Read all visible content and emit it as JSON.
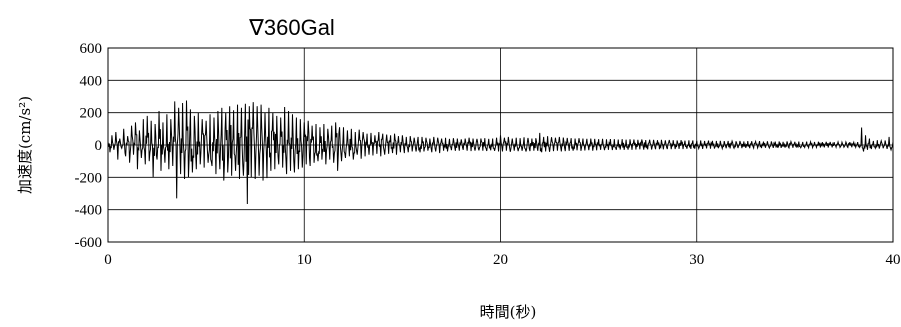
{
  "chart_data": {
    "type": "line",
    "title": "∇360Gal",
    "xlabel": "時間(秒)",
    "ylabel": "加速度(cm/s²)",
    "xlim": [
      0,
      40
    ],
    "ylim": [
      -600,
      600
    ],
    "x_ticks": [
      0,
      10,
      20,
      30,
      40
    ],
    "y_ticks": [
      600,
      400,
      200,
      0,
      -200,
      -400,
      -600
    ],
    "grid": true,
    "legend": "none",
    "line_color": "#000000",
    "series": [
      {
        "sample_interval_s": 0.1,
        "values": [
          20,
          -45,
          60,
          -30,
          80,
          -90,
          40,
          -20,
          100,
          -70,
          55,
          -110,
          120,
          -60,
          140,
          -150,
          90,
          -80,
          160,
          -120,
          180,
          -100,
          150,
          -200,
          130,
          -90,
          210,
          -160,
          140,
          -110,
          190,
          -150,
          160,
          -130,
          270,
          -330,
          230,
          -180,
          260,
          -210,
          275,
          -200,
          220,
          -170,
          180,
          -150,
          200,
          -120,
          160,
          -140,
          150,
          -110,
          190,
          -130,
          170,
          -180,
          210,
          -150,
          230,
          -220,
          200,
          -170,
          240,
          -190,
          215,
          -160,
          250,
          -210,
          230,
          -190,
          255,
          -365,
          240,
          -200,
          265,
          -210,
          240,
          -190,
          250,
          -220,
          200,
          -205,
          230,
          -160,
          200,
          -150,
          180,
          -120,
          170,
          -140,
          235,
          -180,
          210,
          -160,
          190,
          -170,
          170,
          -150,
          160,
          -140,
          140,
          -120,
          150,
          -130,
          120,
          -110,
          130,
          -100,
          110,
          -90,
          130,
          -120,
          100,
          -90,
          120,
          -110,
          140,
          -160,
          110,
          -100,
          110,
          -80,
          90,
          -70,
          100,
          -90,
          80,
          -60,
          95,
          -85,
          80,
          -70,
          70,
          -60,
          75,
          -65,
          60,
          -55,
          80,
          -70,
          70,
          -60,
          65,
          -55,
          60,
          -50,
          70,
          -60,
          55,
          -45,
          60,
          -50,
          50,
          -45,
          55,
          -40,
          45,
          -40,
          50,
          -45,
          50,
          -40,
          45,
          -35,
          40,
          -45,
          50,
          -40,
          45,
          -50,
          40,
          -35,
          45,
          -40,
          38,
          -32,
          42,
          -36,
          40,
          -35,
          35,
          -30,
          40,
          -35,
          45,
          -38,
          40,
          -35,
          38,
          -33,
          40,
          -35,
          42,
          -37,
          38,
          -33,
          40,
          -36,
          45,
          -40,
          60,
          -40,
          45,
          -35,
          50,
          -42,
          40,
          -35,
          45,
          -38,
          42,
          -36,
          48,
          -40,
          44,
          -38,
          40,
          -35,
          42,
          -36,
          75,
          -45,
          50,
          -40,
          55,
          -42,
          48,
          -38,
          45,
          -35,
          50,
          -40,
          46,
          -38,
          44,
          -36,
          42,
          -35,
          40,
          -33,
          42,
          -36,
          40,
          -34,
          38,
          -32,
          40,
          -35,
          38,
          -33,
          36,
          -30,
          38,
          -32,
          35,
          -30,
          37,
          -31,
          36,
          -30,
          34,
          -28,
          36,
          -30,
          33,
          -29,
          35,
          -30,
          34,
          -28,
          32,
          -27,
          34,
          -29,
          31,
          -27,
          33,
          -28,
          32,
          -26,
          30,
          -26,
          32,
          -27,
          29,
          -25,
          31,
          -26,
          30,
          -25,
          28,
          -24,
          30,
          -25,
          27,
          -23,
          29,
          -24,
          28,
          -23,
          26,
          -22,
          28,
          -24,
          25,
          -21,
          27,
          -23,
          26,
          -22,
          25,
          -20,
          26,
          -22,
          24,
          -20,
          25,
          -21,
          24,
          -20,
          23,
          -19,
          25,
          -20,
          22,
          -18,
          24,
          -20,
          23,
          -19,
          22,
          -18,
          24,
          -19,
          21,
          -17,
          23,
          -19,
          22,
          -18,
          21,
          -17,
          22,
          -18,
          20,
          -16,
          22,
          -18,
          21,
          -17,
          20,
          -16,
          21,
          -17,
          19,
          -15,
          21,
          -17,
          20,
          -16,
          19,
          -15,
          20,
          -16,
          18,
          -15,
          20,
          -16,
          19,
          -15,
          18,
          -14,
          19,
          -15,
          17,
          -14,
          19,
          -15,
          18,
          -14,
          17,
          -14,
          18,
          -15,
          108,
          -40,
          60,
          -30,
          40,
          -25,
          25,
          -20,
          30,
          -22,
          26,
          -20,
          28,
          -24,
          50,
          -30,
          20
        ]
      }
    ]
  }
}
